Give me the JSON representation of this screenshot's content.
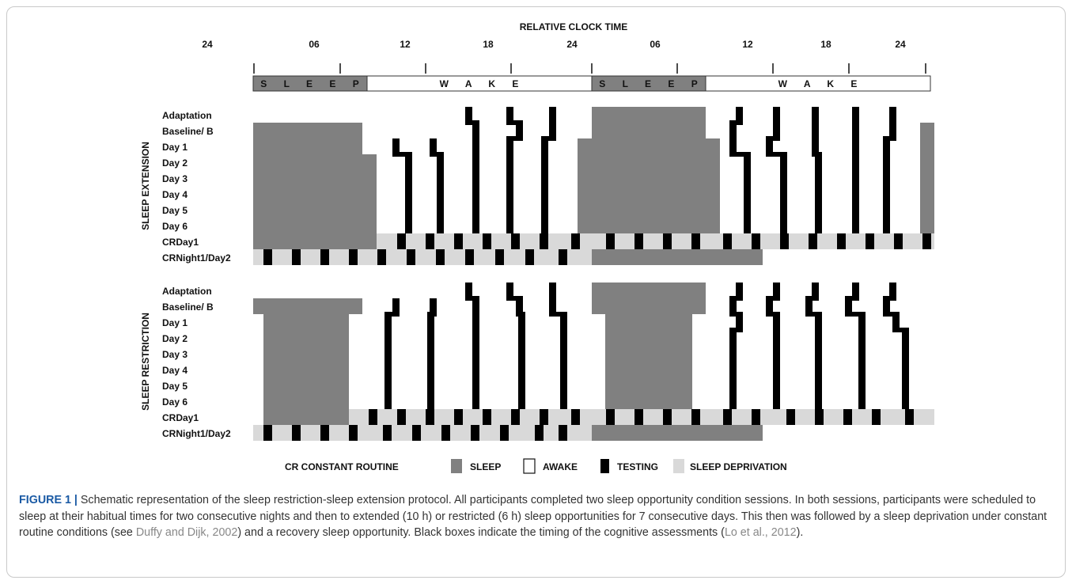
{
  "header": {
    "title": "RELATIVE  CLOCK  TIME",
    "hours": [
      "24",
      "06",
      "12",
      "18",
      "24",
      "06",
      "12",
      "18",
      "24"
    ]
  },
  "bands": {
    "sleep_label": "S L E E P",
    "wake_label": "W A K E"
  },
  "sections": [
    {
      "label": "SLEEP EXTENSION",
      "rows": [
        "Adaptation",
        "Baseline/ B",
        "Day 1",
        "Day 2",
        "Day 3",
        "Day 4",
        "Day 5",
        "Day 6",
        "CRDay1",
        "CRNight1/Day2"
      ]
    },
    {
      "label": "SLEEP RESTRICTION",
      "rows": [
        "Adaptation",
        "Baseline/ B",
        "Day 1",
        "Day 2",
        "Day 3",
        "Day 4",
        "Day 5",
        "Day 6",
        "CRDay1",
        "CRNight1/Day2"
      ]
    }
  ],
  "legend": {
    "cr": "CR  CONSTANT ROUTINE",
    "sleep": "SLEEP",
    "awake": "AWAKE",
    "testing": "TESTING",
    "deprivation": "SLEEP DEPRIVATION"
  },
  "colors": {
    "sleep": "#808080",
    "testing": "#000000",
    "deprivation": "#d9d9d9",
    "awake": "#ffffff",
    "caption_figure": "#1a5aa4"
  },
  "caption": {
    "figure_label": "FIGURE 1 |",
    "text_1": " Schematic representation of the sleep restriction-sleep extension protocol. All participants completed two sleep opportunity condition sessions. In both sessions, participants were scheduled to sleep at their habitual times for two consecutive nights and then to extended (10 h) or restricted (6 h) sleep opportunities for 7 consecutive days. This then was followed by a sleep deprivation under constant routine conditions (see ",
    "ref_1": "Duffy and Dijk, 2002",
    "text_2": ") and a recovery sleep opportunity. Black boxes indicate the timing of the cognitive assessments (",
    "ref_2": "Lo et al., 2012",
    "text_3": ")."
  }
}
